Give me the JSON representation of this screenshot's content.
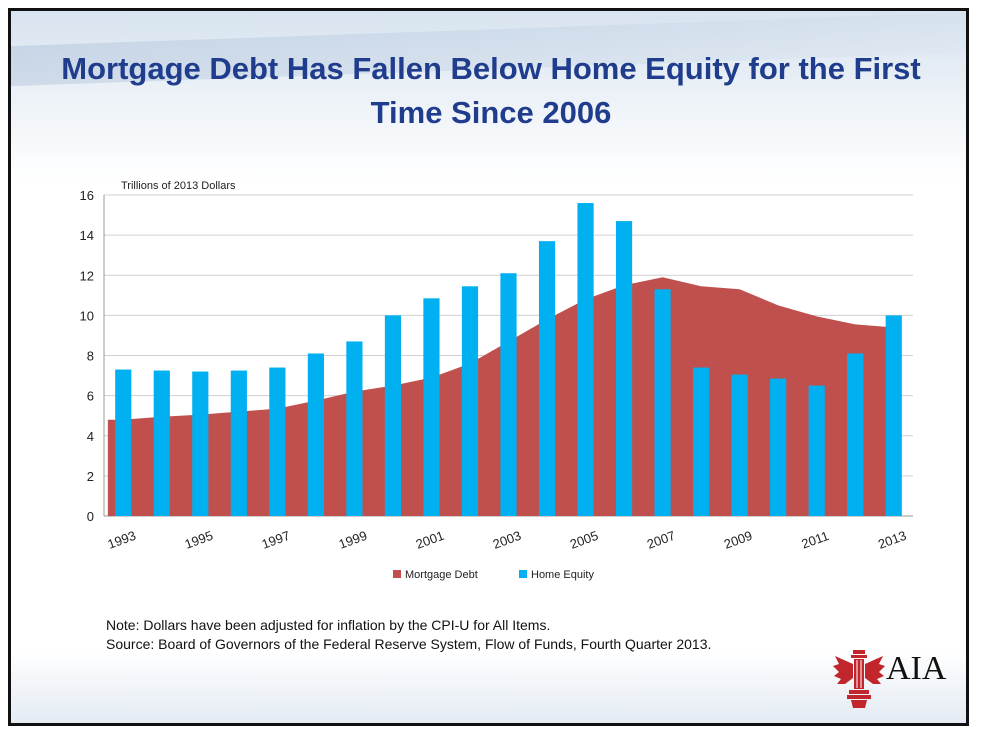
{
  "slide": {
    "title": "Mortgage Debt Has Fallen Below Home Equity for the First Time Since 2006",
    "note": "Note: Dollars have been adjusted for inflation by the CPI-U for All Items.",
    "source": "Source: Board of Governors of the Federal Reserve System, Flow of Funds, Fourth Quarter 2013.",
    "logo_text": "AIA"
  },
  "chart_data": {
    "type": "bar",
    "title": "",
    "ylabel": "Trillions of 2013 Dollars",
    "ylim": [
      0,
      16
    ],
    "yticks": [
      0,
      2,
      4,
      6,
      8,
      10,
      12,
      14,
      16
    ],
    "grid": true,
    "legend_position": "bottom",
    "categories": [
      "1993",
      "1994",
      "1995",
      "1996",
      "1997",
      "1998",
      "1999",
      "2000",
      "2001",
      "2002",
      "2003",
      "2004",
      "2005",
      "2006",
      "2007",
      "2008",
      "2009",
      "2010",
      "2011",
      "2012",
      "2013"
    ],
    "xtick_labels": [
      "1993",
      "1995",
      "1997",
      "1999",
      "2001",
      "2003",
      "2005",
      "2007",
      "2009",
      "2011",
      "2013"
    ],
    "series": [
      {
        "name": "Mortgage Debt",
        "type": "area",
        "color": "#c0504d",
        "values": [
          4.8,
          4.95,
          5.05,
          5.2,
          5.35,
          5.75,
          6.2,
          6.5,
          6.9,
          7.6,
          8.7,
          9.8,
          10.8,
          11.5,
          11.9,
          11.45,
          11.3,
          10.5,
          9.95,
          9.55,
          9.4
        ]
      },
      {
        "name": "Home Equity",
        "type": "bar",
        "color": "#00b0f0",
        "values": [
          7.3,
          7.25,
          7.2,
          7.25,
          7.4,
          8.1,
          8.7,
          10.0,
          10.85,
          11.45,
          12.1,
          13.7,
          15.6,
          14.7,
          11.3,
          7.4,
          7.05,
          6.85,
          6.5,
          8.1,
          10.0
        ]
      }
    ]
  }
}
